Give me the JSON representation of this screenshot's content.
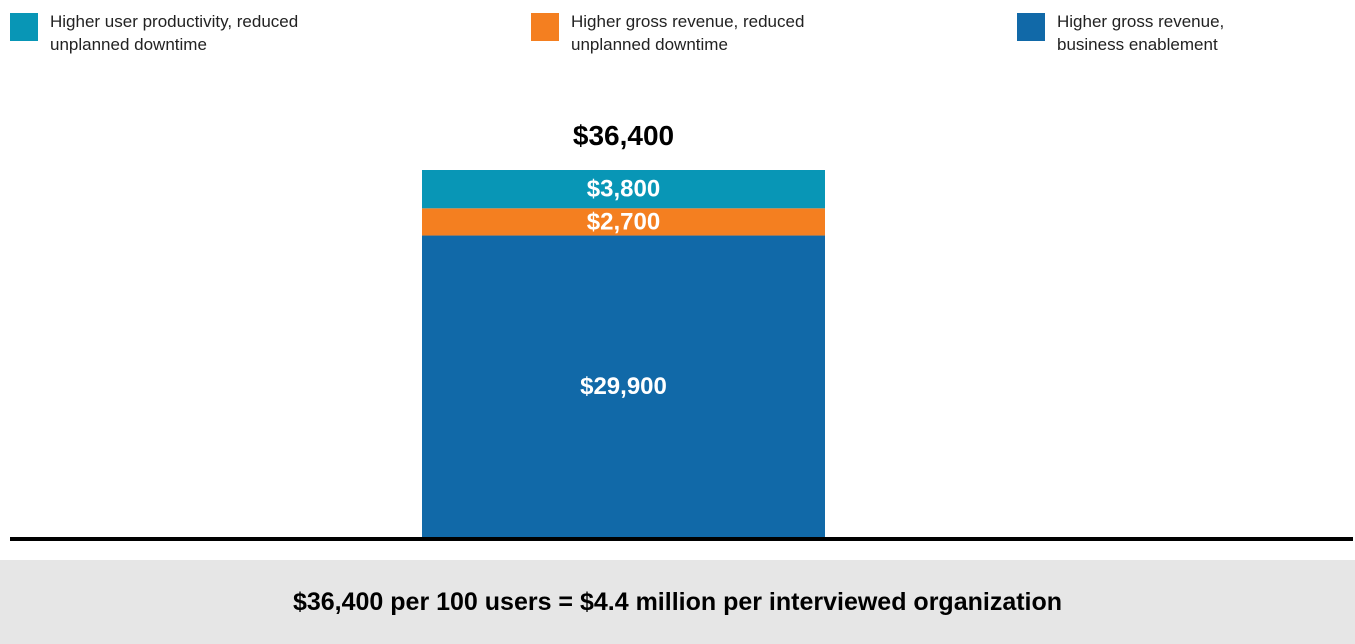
{
  "chart_data": {
    "type": "bar",
    "stacked": true,
    "categories": [
      ""
    ],
    "series": [
      {
        "name": "Higher gross revenue, business enablement",
        "values": [
          29900
        ],
        "label": "$29,900",
        "color": "#1169a8"
      },
      {
        "name": "Higher gross revenue, reduced unplanned downtime",
        "values": [
          2700
        ],
        "label": "$2,700",
        "color": "#f47f20"
      },
      {
        "name": "Higher user productivity, reduced unplanned downtime",
        "values": [
          3800
        ],
        "label": "$3,800",
        "color": "#0896b6"
      }
    ],
    "total": 36400,
    "total_label": "$36,400",
    "ylim": [
      0,
      36400
    ],
    "grid": false,
    "legend_position": "top"
  },
  "legend": [
    {
      "text": "Higher user productivity, reduced\nunplanned downtime",
      "color": "#0896b6"
    },
    {
      "text": "Higher gross revenue, reduced\nunplanned downtime",
      "color": "#f47f20"
    },
    {
      "text": "Higher gross revenue,\nbusiness enablement",
      "color": "#1169a8"
    }
  ],
  "footer": {
    "text": "$36,400 per 100 users = $4.4 million per interviewed organization"
  }
}
